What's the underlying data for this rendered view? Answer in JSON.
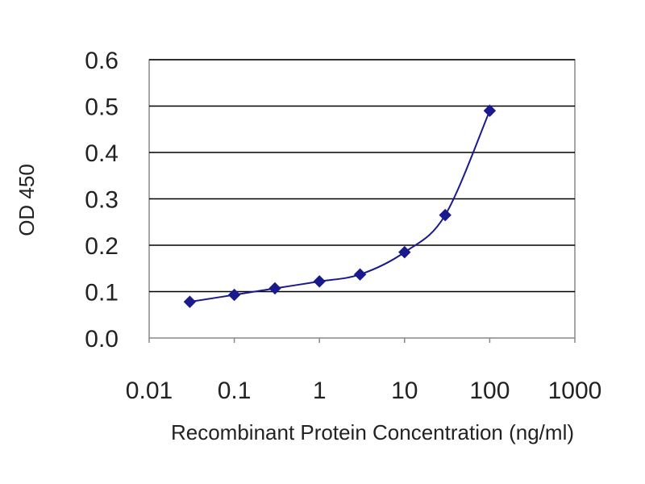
{
  "chart_data": {
    "type": "line",
    "title": "",
    "xlabel": "Recombinant Protein Concentration (ng/ml)",
    "ylabel": "OD 450",
    "x_scale": "log",
    "xlim": [
      0.01,
      1000
    ],
    "ylim": [
      0.0,
      0.6
    ],
    "x_ticks": [
      0.01,
      0.1,
      1,
      10,
      100,
      1000
    ],
    "x_tick_labels": [
      "0.01",
      "0.1",
      "1",
      "10",
      "100",
      "1000"
    ],
    "y_ticks": [
      0.0,
      0.1,
      0.2,
      0.3,
      0.4,
      0.5,
      0.6
    ],
    "y_tick_labels": [
      "0.0",
      "0.1",
      "0.2",
      "0.3",
      "0.4",
      "0.5",
      "0.6"
    ],
    "grid": "horizontal",
    "legend": "none",
    "colors": {
      "series": "#1a1a8c",
      "gridline": "#000000",
      "frame": "#888888",
      "background": "#ffffff"
    },
    "marker": "diamond",
    "series": [
      {
        "x": [
          0.03,
          0.1,
          0.3,
          1,
          3,
          10,
          30,
          100
        ],
        "y": [
          0.078,
          0.093,
          0.107,
          0.122,
          0.137,
          0.185,
          0.265,
          0.49
        ]
      }
    ]
  }
}
